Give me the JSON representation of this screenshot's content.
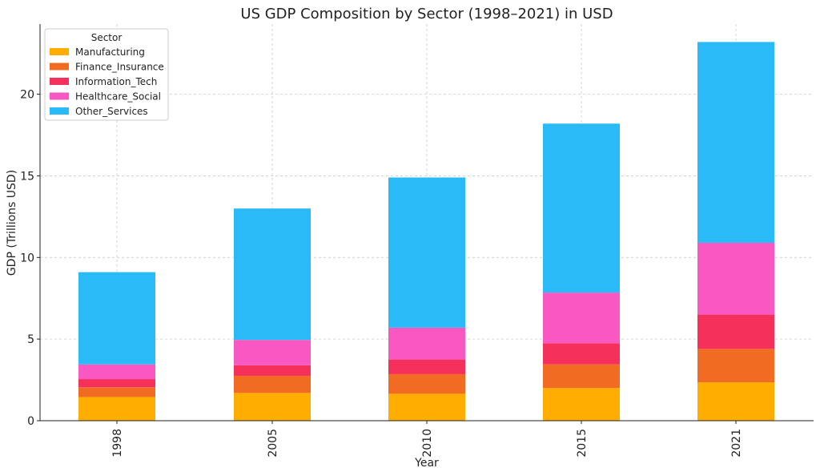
{
  "chart_data": {
    "type": "bar",
    "stacked": true,
    "title": "US GDP Composition by Sector (1998–2021) in USD",
    "xlabel": "Year",
    "ylabel": "GDP (Trillions USD)",
    "categories": [
      "1998",
      "2005",
      "2010",
      "2015",
      "2021"
    ],
    "ylim": [
      0,
      24.3
    ],
    "yticks": [
      0,
      5,
      10,
      15,
      20
    ],
    "grid": true,
    "legend": {
      "title": "Sector",
      "placement": "top-left"
    },
    "series": [
      {
        "name": "Manufacturing",
        "color": "#FFAD00",
        "values": [
          1.45,
          1.7,
          1.65,
          2.0,
          2.35
        ]
      },
      {
        "name": "Finance_Insurance",
        "color": "#F26B22",
        "values": [
          0.6,
          1.05,
          1.2,
          1.45,
          2.05
        ]
      },
      {
        "name": "Information_Tech",
        "color": "#F5305A",
        "values": [
          0.5,
          0.65,
          0.9,
          1.3,
          2.1
        ]
      },
      {
        "name": "Healthcare_Social",
        "color": "#F957C1",
        "values": [
          0.9,
          1.55,
          1.95,
          3.1,
          4.4
        ]
      },
      {
        "name": "Other_Services",
        "color": "#29BAF7",
        "values": [
          5.65,
          8.05,
          9.2,
          10.35,
          12.3
        ]
      }
    ]
  }
}
